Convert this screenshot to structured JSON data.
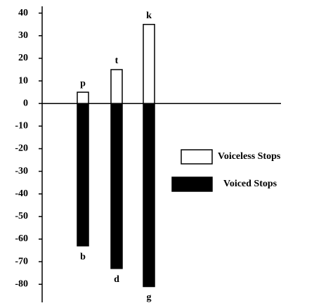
{
  "chart_data": {
    "type": "bar",
    "ylim": [
      -88,
      43
    ],
    "yticks": [
      40,
      30,
      20,
      10,
      0,
      -10,
      -20,
      -30,
      -40,
      -50,
      -60,
      -70,
      -80
    ],
    "series": [
      {
        "name": "Voiceless Stops",
        "color": "#ffffff",
        "labels": [
          "p",
          "t",
          "k"
        ],
        "values": [
          5,
          15,
          35
        ]
      },
      {
        "name": "Voiced Stops",
        "color": "#000000",
        "labels": [
          "b",
          "d",
          "g"
        ],
        "values": [
          -63,
          -73,
          -81
        ]
      }
    ]
  }
}
